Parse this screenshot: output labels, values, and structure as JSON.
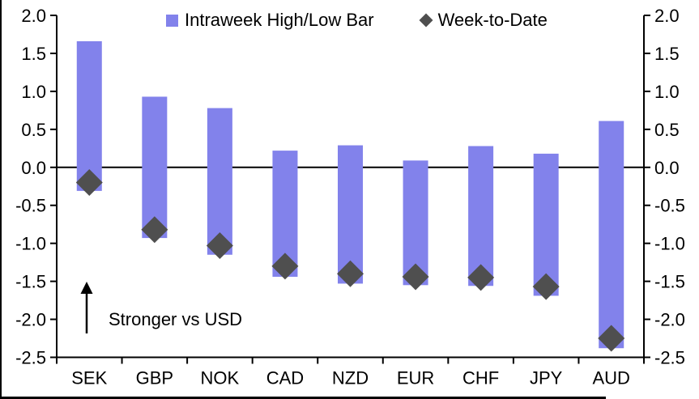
{
  "chart_data": {
    "type": "bar",
    "subtype": "floating-range-bars-with-diamond-markers",
    "title": "",
    "xlabel": "",
    "ylabel": "",
    "categories": [
      "SEK",
      "GBP",
      "NOK",
      "CAD",
      "NZD",
      "EUR",
      "CHF",
      "JPY",
      "AUD"
    ],
    "series": [
      {
        "name": "Intraweek High/Low Bar",
        "marker": "bar",
        "color": "#8282EB",
        "high": [
          1.66,
          0.93,
          0.78,
          0.22,
          0.29,
          0.09,
          0.28,
          0.18,
          0.61
        ],
        "low": [
          -0.31,
          -0.93,
          -1.15,
          -1.44,
          -1.53,
          -1.55,
          -1.56,
          -1.69,
          -2.38
        ]
      },
      {
        "name": "Week-to-Date",
        "marker": "diamond",
        "color": "#4F4F4F",
        "values": [
          -0.2,
          -0.82,
          -1.03,
          -1.3,
          -1.4,
          -1.44,
          -1.45,
          -1.57,
          -2.25
        ]
      }
    ],
    "ylim": [
      -2.5,
      2.0
    ],
    "yticks": [
      2.0,
      1.5,
      1.0,
      0.5,
      0.0,
      -0.5,
      -1.0,
      -1.5,
      -2.0,
      -2.5
    ],
    "y_axis_sides": [
      "left",
      "right"
    ],
    "grid": false,
    "zero_line": true,
    "legend_position": "top-center",
    "annotation": {
      "text": "Stronger vs USD",
      "arrow": "up"
    }
  },
  "legend": {
    "bar_label": "Intraweek High/Low Bar",
    "wtd_label": "Week-to-Date"
  },
  "annotation": {
    "text": "Stronger vs USD"
  },
  "colors": {
    "bar": "#8282EB",
    "diamond": "#4F4F4F",
    "axis": "#000000",
    "background": "#FFFFFF"
  }
}
